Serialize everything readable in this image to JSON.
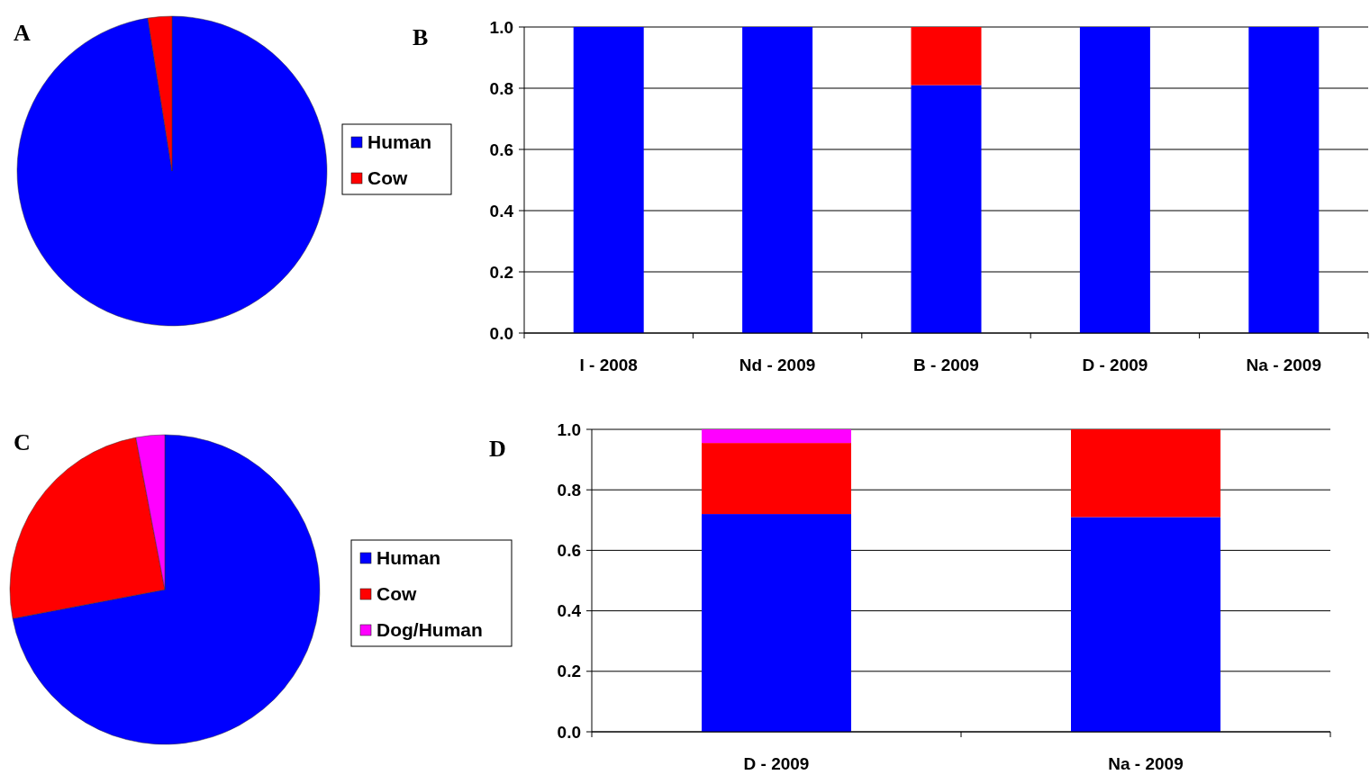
{
  "chart_data": [
    {
      "type": "pie",
      "title": "A",
      "categories": [
        "Human",
        "Cow"
      ],
      "values": [
        97.5,
        2.5
      ],
      "colors": [
        "#0000ff",
        "#ff0000"
      ],
      "legend": "right"
    },
    {
      "type": "bar",
      "title": "B",
      "stacked": true,
      "categories": [
        "I - 2008",
        "Nd - 2009",
        "B - 2009",
        "D - 2009",
        "Na - 2009"
      ],
      "series": [
        {
          "color": "#0000ff",
          "values": [
            1,
            1,
            0.81,
            1,
            1
          ]
        },
        {
          "color": "#ff0000",
          "values": [
            0,
            0,
            0.19,
            0,
            0
          ]
        }
      ],
      "ylim": [
        0,
        1
      ],
      "yticks": [
        {
          "value": 0,
          "label": "0.0"
        },
        {
          "value": 0.2,
          "label": "0.2"
        },
        {
          "value": 0.4,
          "label": "0.4"
        },
        {
          "value": 0.6,
          "label": "0.6"
        },
        {
          "value": 0.8,
          "label": "0.8"
        },
        {
          "value": 1,
          "label": "1.0"
        }
      ],
      "grid": "y"
    },
    {
      "type": "pie",
      "title": "C",
      "categories": [
        "Human",
        "Cow",
        "Dog/Human"
      ],
      "values": [
        72,
        25,
        3
      ],
      "colors": [
        "#0000ff",
        "#ff0000",
        "#ff00ff"
      ],
      "legend": "right"
    },
    {
      "type": "bar",
      "title": "D",
      "stacked": true,
      "categories": [
        "D - 2009",
        "Na - 2009"
      ],
      "series": [
        {
          "color": "#0000ff",
          "values": [
            0.72,
            0.71
          ]
        },
        {
          "color": "#ff0000",
          "values": [
            0.235,
            0.29
          ]
        },
        {
          "color": "#ff00ff",
          "values": [
            0.045,
            0
          ]
        }
      ],
      "ylim": [
        0,
        1
      ],
      "yticks": [
        {
          "value": 0,
          "label": "0.0"
        },
        {
          "value": 0.2,
          "label": "0.2"
        },
        {
          "value": 0.4,
          "label": "0.4"
        },
        {
          "value": 0.6,
          "label": "0.6"
        },
        {
          "value": 0.8,
          "label": "0.8"
        },
        {
          "value": 1,
          "label": "1.0"
        }
      ],
      "grid": "y"
    }
  ]
}
